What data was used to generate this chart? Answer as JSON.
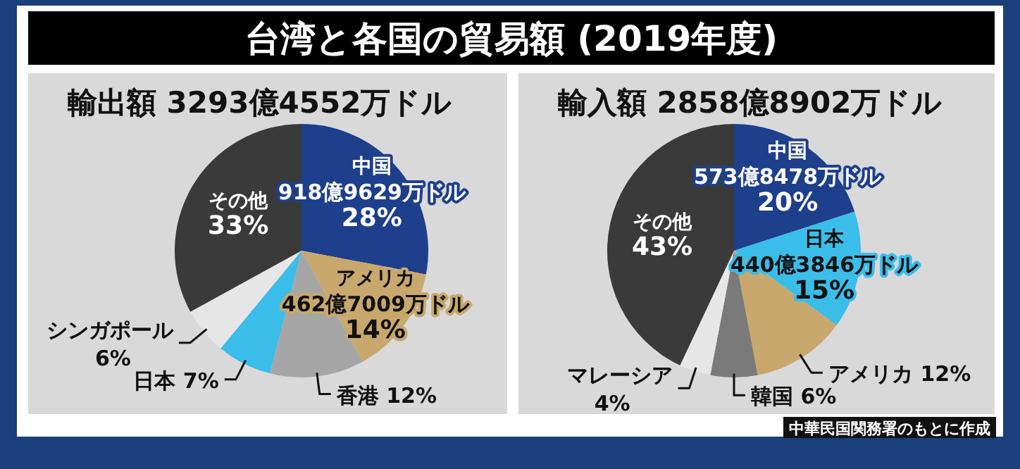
{
  "chart_data": [
    {
      "type": "pie",
      "title": "台湾と各国の貿易額 (2019年度)",
      "subtitle": "輸出額 3293億4552万ドル",
      "categories": [
        "中国",
        "アメリカ",
        "香港",
        "日本",
        "シンガポール",
        "その他"
      ],
      "values": [
        28,
        14,
        12,
        7,
        6,
        33
      ],
      "colors": [
        "#1e3f8c",
        "#c8a86c",
        "#a6a6a6",
        "#3bbde9",
        "#e6e6e6",
        "#3a3a3a"
      ],
      "value_labels": [
        "28%",
        "14%",
        "12%",
        "7%",
        "6%",
        "33%"
      ],
      "annotations": [
        {
          "text": "918億9629万ドル",
          "x": "中国"
        },
        {
          "text": "462億7009万ドル",
          "x": "アメリカ"
        }
      ]
    },
    {
      "type": "pie",
      "subtitle": "輸入額 2858億8902万ドル",
      "categories": [
        "中国",
        "日本",
        "アメリカ",
        "韓国",
        "マレーシア",
        "その他"
      ],
      "values": [
        20,
        15,
        12,
        6,
        4,
        43
      ],
      "colors": [
        "#1e3f8c",
        "#3bbde9",
        "#c8a86c",
        "#7a7a7a",
        "#e6e6e6",
        "#3a3a3a"
      ],
      "value_labels": [
        "20%",
        "15%",
        "12%",
        "6%",
        "4%",
        "43%"
      ],
      "annotations": [
        {
          "text": "573億8478万ドル",
          "x": "中国"
        },
        {
          "text": "440億3846万ドル",
          "x": "日本"
        },
        "中華民国関務署のもとに作成"
      ]
    }
  ]
}
